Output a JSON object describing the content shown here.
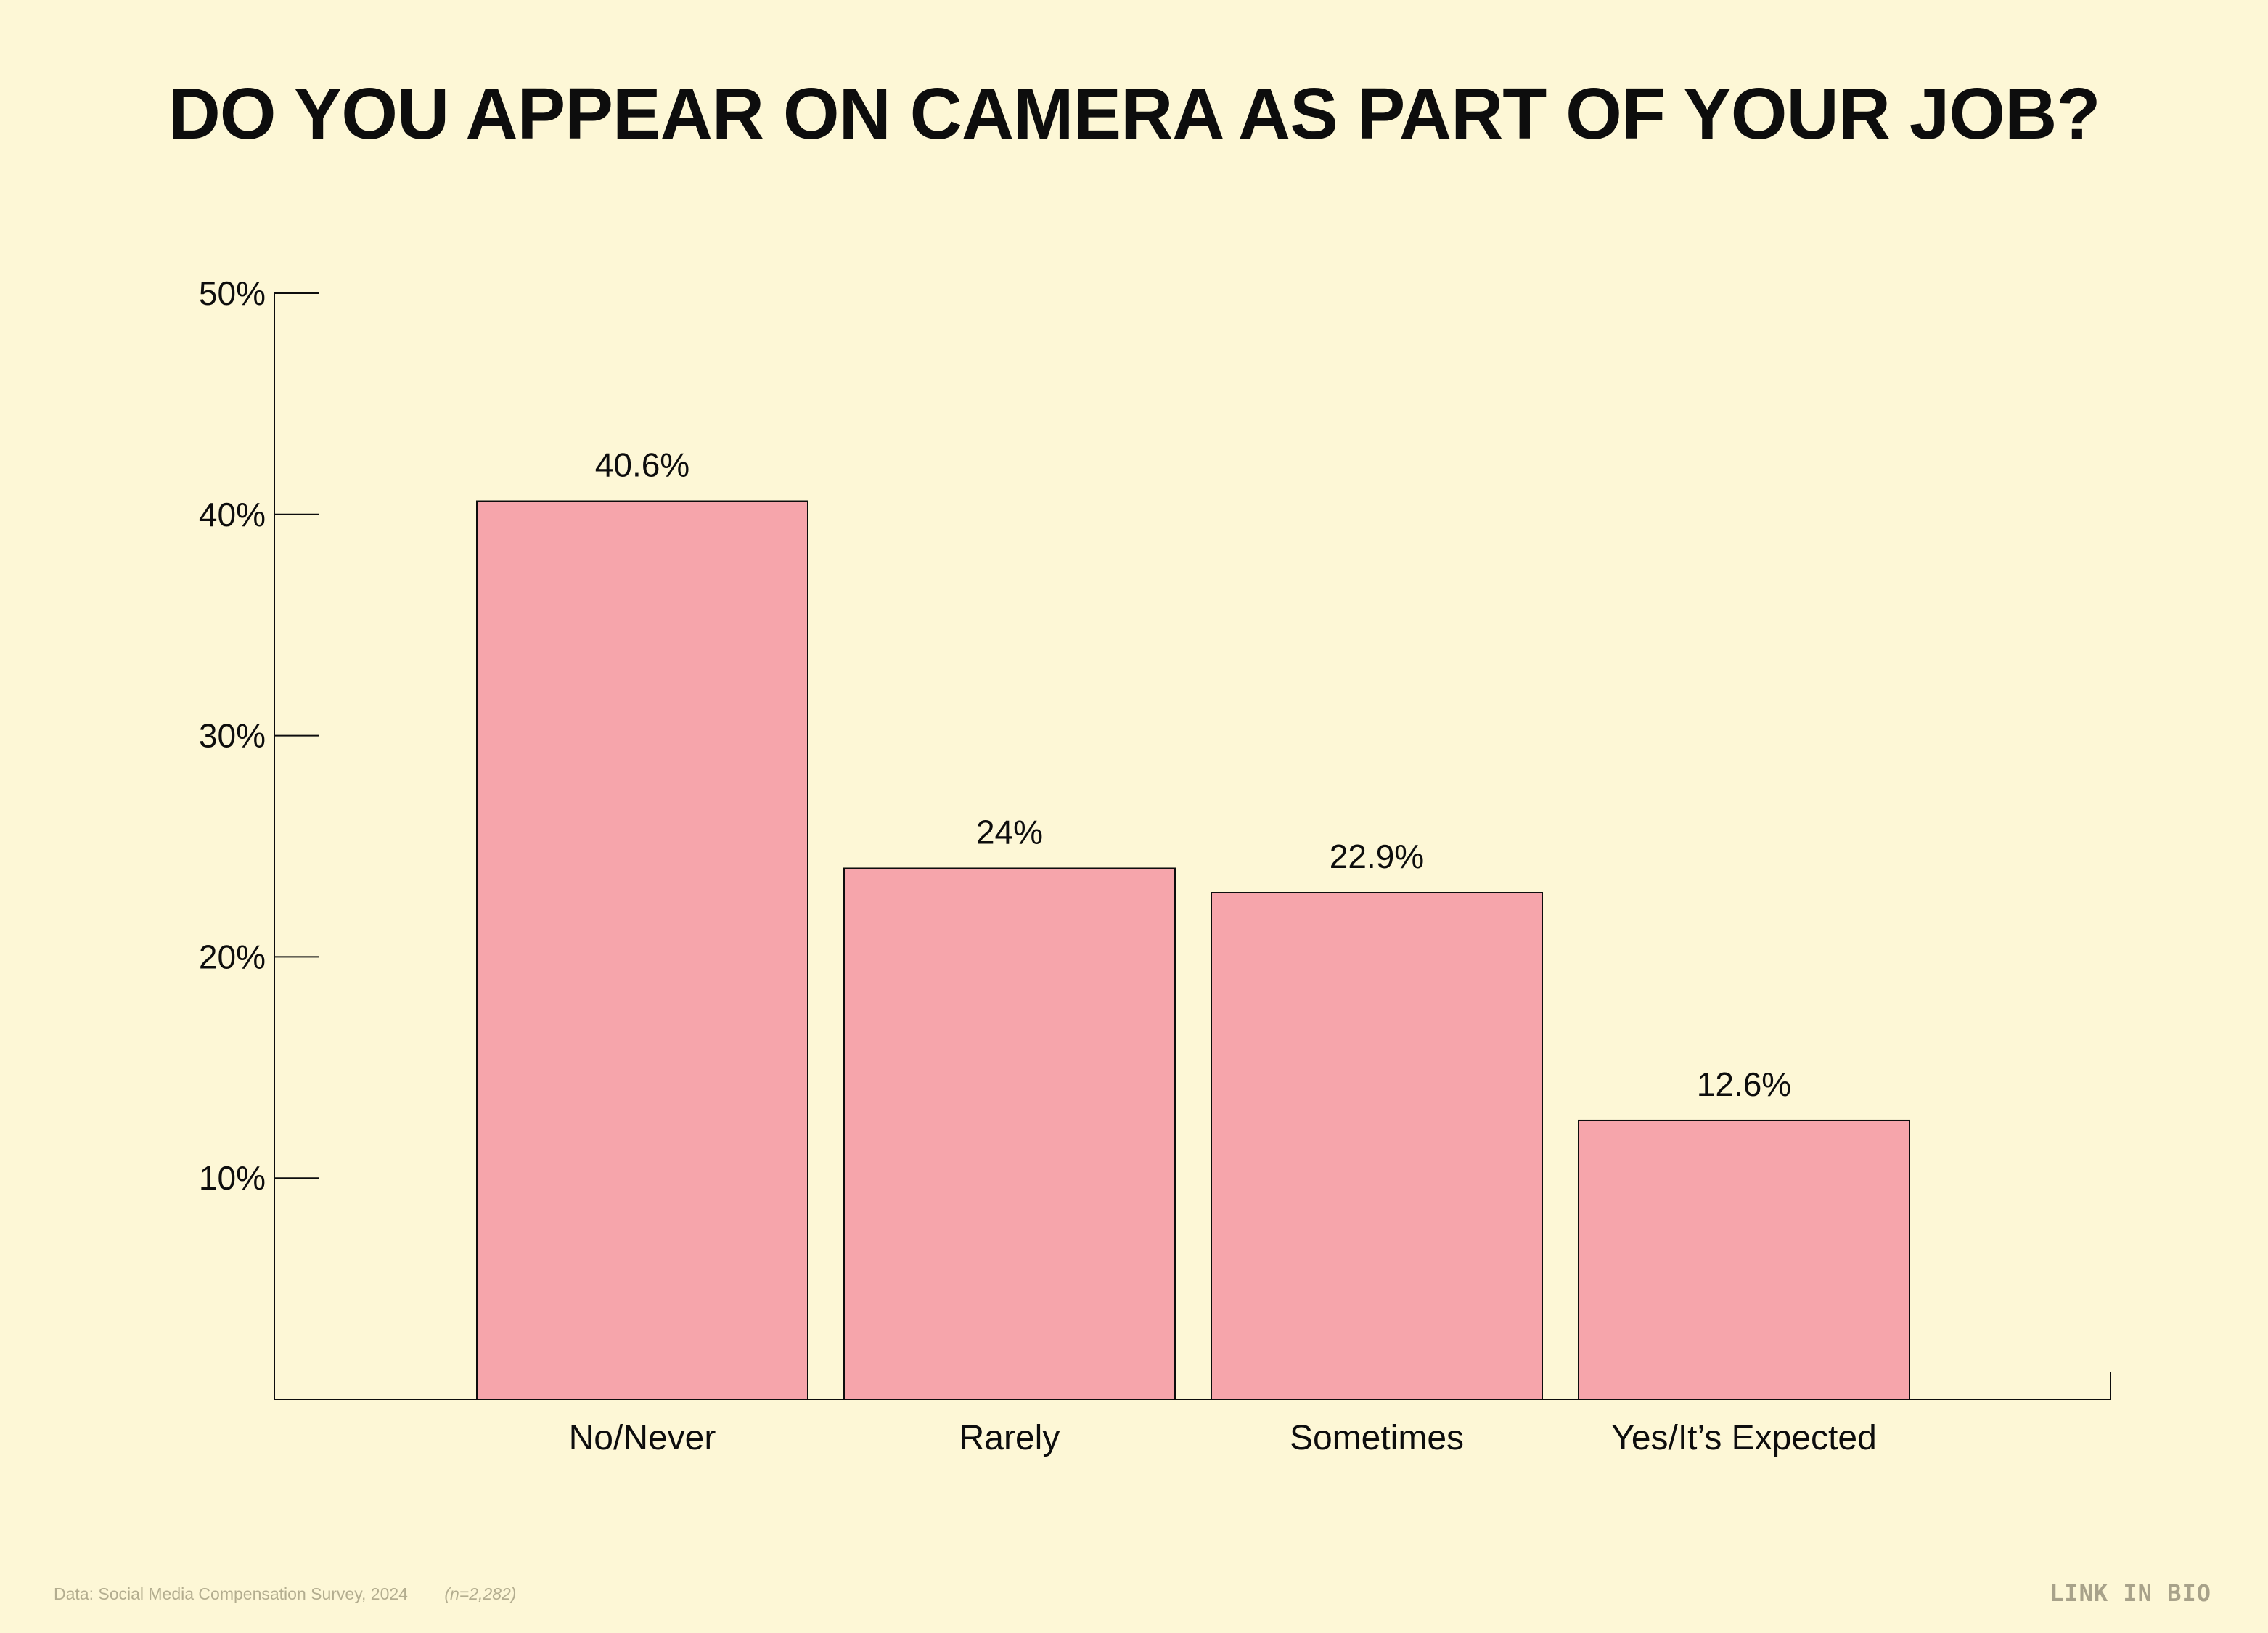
{
  "title": "DO YOU APPEAR ON CAMERA AS PART OF YOUR JOB?",
  "footer": {
    "source": "Data: Social Media Compensation Survey, 2024",
    "sample": "(n=2,282)"
  },
  "logo_text": "LINK IN BIO",
  "colors": {
    "background": "#fdf7d6",
    "bar_fill": "#f6a5ab",
    "ink": "#0d0d0d"
  },
  "chart_data": {
    "type": "bar",
    "title": "DO YOU APPEAR ON CAMERA AS PART OF YOUR JOB?",
    "xlabel": "",
    "ylabel": "",
    "categories": [
      "No/Never",
      "Rarely",
      "Sometimes",
      "Yes/It’s Expected"
    ],
    "values": [
      40.6,
      24,
      22.9,
      12.6
    ],
    "value_labels": [
      "40.6%",
      "24%",
      "22.9%",
      "12.6%"
    ],
    "ylim": [
      0,
      50
    ],
    "y_ticks": [
      10,
      20,
      30,
      40,
      50
    ],
    "y_tick_labels": [
      "10%",
      "20%",
      "30%",
      "40%",
      "50%"
    ],
    "grid": false,
    "legend": "none"
  }
}
